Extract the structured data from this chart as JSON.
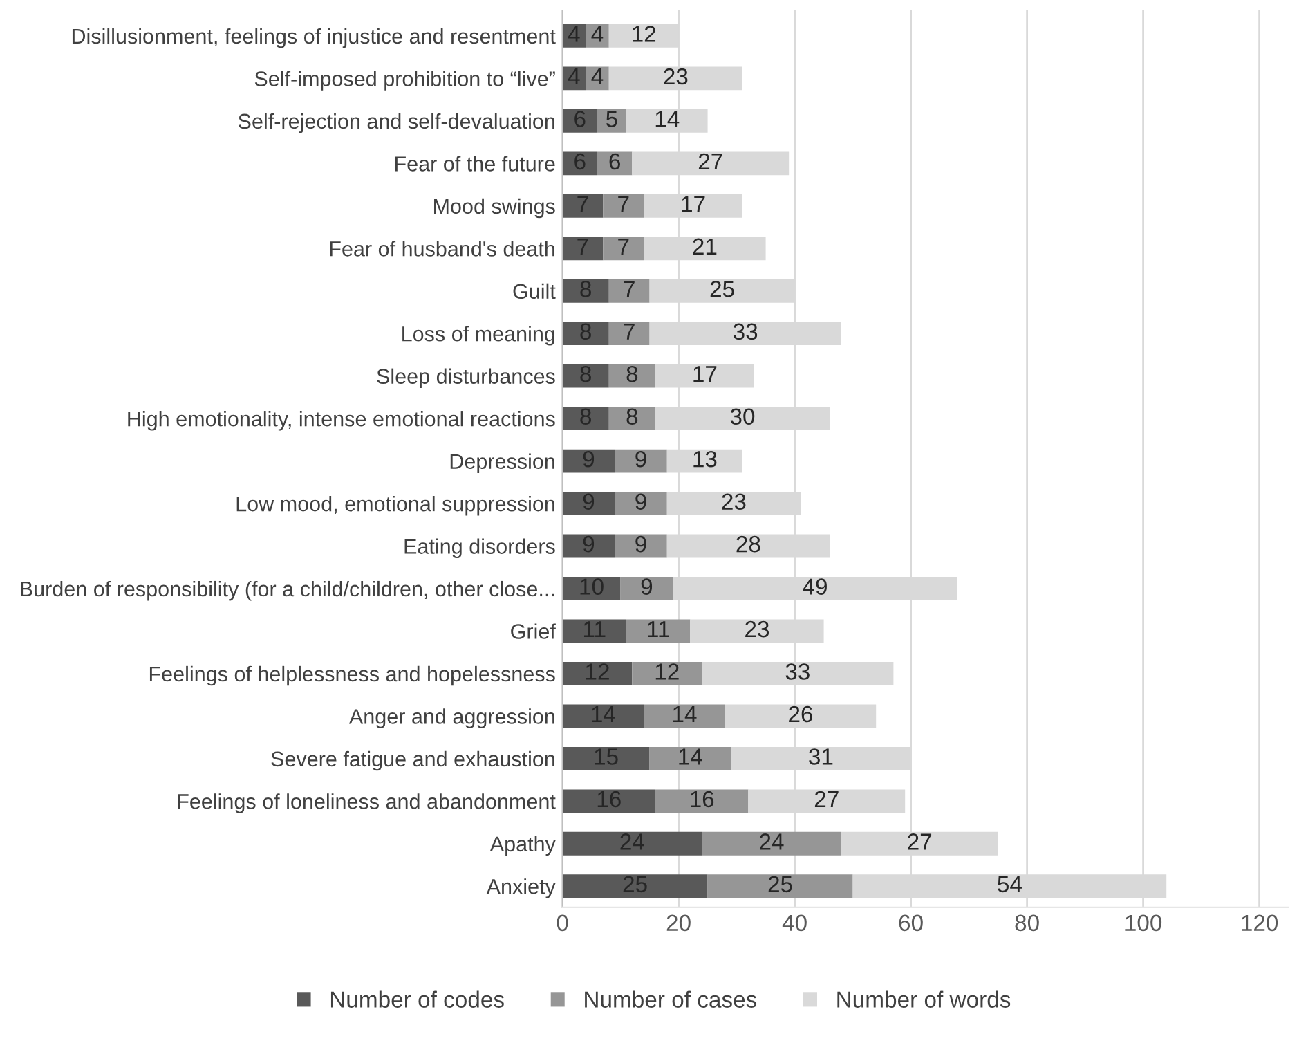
{
  "chart_data": {
    "type": "bar",
    "orientation": "horizontal",
    "stacked": true,
    "data_labels": true,
    "grid": "x",
    "legend": "bottom",
    "categories": [
      "Disillusionment, feelings of injustice and resentment",
      "Self-imposed prohibition to “live”",
      "Self-rejection and self-devaluation",
      "Fear of the future",
      "Mood swings",
      "Fear of husband's death",
      "Guilt",
      "Loss of meaning",
      "Sleep disturbances",
      "High emotionality, intense emotional reactions",
      "Depression",
      "Low mood, emotional suppression",
      "Eating disorders",
      "Burden of responsibility (for a child/children, other close...",
      "Grief",
      "Feelings of helplessness and hopelessness",
      "Anger and aggression",
      "Severe fatigue and exhaustion",
      "Feelings of loneliness and abandonment",
      "Apathy",
      "Anxiety"
    ],
    "series": [
      {
        "name": "Number of codes",
        "color": "#595959",
        "values": [
          4,
          4,
          6,
          6,
          7,
          7,
          8,
          8,
          8,
          8,
          9,
          9,
          9,
          10,
          11,
          12,
          14,
          15,
          16,
          24,
          25
        ]
      },
      {
        "name": "Number of cases",
        "color": "#969696",
        "values": [
          4,
          4,
          5,
          6,
          7,
          7,
          7,
          7,
          8,
          8,
          9,
          9,
          9,
          9,
          11,
          12,
          14,
          14,
          16,
          24,
          25
        ]
      },
      {
        "name": "Number of words",
        "color": "#d9d9d9",
        "values": [
          12,
          23,
          14,
          27,
          17,
          21,
          25,
          33,
          17,
          30,
          13,
          23,
          28,
          49,
          23,
          33,
          26,
          31,
          27,
          27,
          54
        ]
      }
    ],
    "xlim": [
      0,
      125
    ],
    "xticks": [
      0,
      20,
      40,
      60,
      80,
      100,
      120
    ]
  }
}
